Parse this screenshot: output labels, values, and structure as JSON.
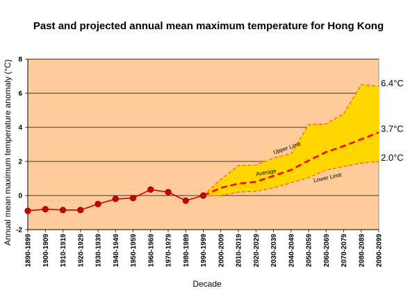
{
  "chart_data": {
    "type": "line",
    "title": "Past and projected annual mean maximum temperature for Hong Kong",
    "xlabel": "Decade",
    "ylabel": "Annual mean maximum temperature anomaly (°C)",
    "ylim": [
      -2,
      8
    ],
    "yticks": [
      "-2",
      "0",
      "2",
      "4",
      "6",
      "8"
    ],
    "grid": true,
    "categories": [
      "1890-1899",
      "1900-1909",
      "1910-1919",
      "1920-1929",
      "1930-1939",
      "1940-1949",
      "1950-1959",
      "1960-1969",
      "1970-1979",
      "1980-1989",
      "1990-1999",
      "2000-2009",
      "2010-2019",
      "2020-2029",
      "2030-2039",
      "2040-2049",
      "2050-2059",
      "2060-2069",
      "2070-2079",
      "2080-2089",
      "2090-2099"
    ],
    "series": [
      {
        "key": "observed",
        "values": [
          -0.9,
          -0.8,
          -0.85,
          -0.85,
          -0.5,
          -0.2,
          -0.15,
          0.35,
          0.2,
          -0.3,
          0.0,
          null,
          null,
          null,
          null,
          null,
          null,
          null,
          null,
          null,
          null
        ],
        "color": "#cc0000"
      },
      {
        "key": "average",
        "label": "Average",
        "values": [
          null,
          null,
          null,
          null,
          null,
          null,
          null,
          null,
          null,
          null,
          0.0,
          0.45,
          0.7,
          0.8,
          1.15,
          1.5,
          2.05,
          2.55,
          2.9,
          3.3,
          3.7
        ],
        "color": "#ff0000"
      },
      {
        "key": "upper",
        "label": "Upper Limit",
        "values": [
          null,
          null,
          null,
          null,
          null,
          null,
          null,
          null,
          null,
          null,
          0.0,
          0.95,
          1.75,
          1.8,
          2.2,
          2.45,
          4.15,
          4.2,
          4.8,
          6.5,
          6.4
        ],
        "color": "#ff3300"
      },
      {
        "key": "lower",
        "label": "Lower Limit",
        "values": [
          null,
          null,
          null,
          null,
          null,
          null,
          null,
          null,
          null,
          null,
          0.0,
          0.0,
          0.2,
          0.25,
          0.45,
          0.75,
          1.05,
          1.5,
          1.7,
          1.9,
          2.0
        ],
        "color": "#ff3300"
      }
    ],
    "end_labels": [
      "6.4°C",
      "3.7°C",
      "2.0°C"
    ],
    "colors": {
      "plot_bg": "#ffcc99",
      "band_fill": "#ffd700",
      "grid": "#000000",
      "marker": "#cc0000"
    }
  }
}
